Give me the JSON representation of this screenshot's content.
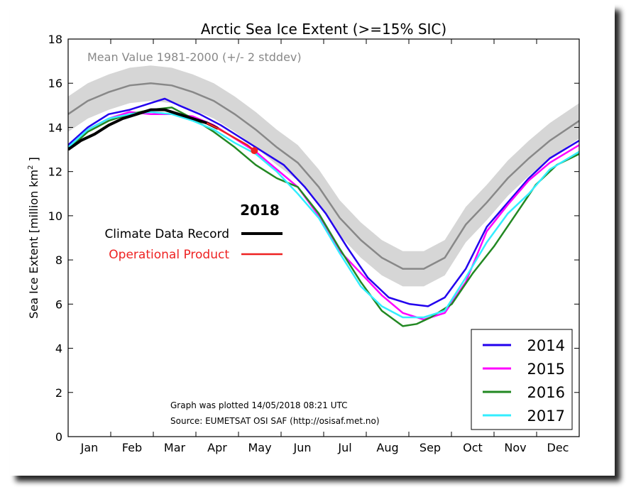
{
  "chart_data": {
    "type": "line",
    "title": "Arctic Sea Ice Extent (>=15% SIC)",
    "ylabel": "Sea Ice Extent [million km",
    "ylabel_sup": "2",
    "ylabel_end": " ]",
    "xlabel": "",
    "ylim": [
      0,
      18
    ],
    "yticks": [
      0,
      2,
      4,
      6,
      8,
      10,
      12,
      14,
      16,
      18
    ],
    "x_range_day": [
      1,
      366
    ],
    "month_ticks": [
      "Jan",
      "Feb",
      "Mar",
      "Apr",
      "May",
      "Jun",
      "Jul",
      "Aug",
      "Sep",
      "Oct",
      "Nov",
      "Dec"
    ],
    "mean_label": "Mean Value 1981-2000 (+/- 2 stddev)",
    "mean": {
      "name": "Mean Value 1981-2000",
      "color": "#888888",
      "band_color": "#d6d6d6",
      "stddev2": 0.8,
      "points": [
        [
          1,
          14.6
        ],
        [
          15,
          15.2
        ],
        [
          30,
          15.6
        ],
        [
          45,
          15.9
        ],
        [
          60,
          16.0
        ],
        [
          75,
          15.9
        ],
        [
          90,
          15.6
        ],
        [
          105,
          15.2
        ],
        [
          120,
          14.6
        ],
        [
          135,
          13.9
        ],
        [
          150,
          13.1
        ],
        [
          165,
          12.4
        ],
        [
          180,
          11.3
        ],
        [
          195,
          9.9
        ],
        [
          210,
          8.9
        ],
        [
          225,
          8.1
        ],
        [
          240,
          7.6
        ],
        [
          255,
          7.6
        ],
        [
          270,
          8.1
        ],
        [
          285,
          9.6
        ],
        [
          300,
          10.6
        ],
        [
          315,
          11.7
        ],
        [
          330,
          12.6
        ],
        [
          345,
          13.4
        ],
        [
          366,
          14.3
        ]
      ]
    },
    "year_heading": "2018",
    "legend_top": [
      {
        "name": "Climate Data Record",
        "color": "#000000"
      },
      {
        "name": "Operational Product",
        "color": "#ee2222"
      }
    ],
    "legend_box": {
      "placement": "lower-right"
    },
    "series": [
      {
        "name": "2014",
        "color": "#2200ee",
        "points": [
          [
            1,
            13.2
          ],
          [
            15,
            14.0
          ],
          [
            30,
            14.6
          ],
          [
            45,
            14.8
          ],
          [
            60,
            15.1
          ],
          [
            70,
            15.3
          ],
          [
            80,
            15.0
          ],
          [
            95,
            14.6
          ],
          [
            110,
            14.1
          ],
          [
            125,
            13.5
          ],
          [
            140,
            12.9
          ],
          [
            155,
            12.3
          ],
          [
            170,
            11.3
          ],
          [
            185,
            10.1
          ],
          [
            200,
            8.6
          ],
          [
            215,
            7.2
          ],
          [
            230,
            6.3
          ],
          [
            245,
            6.0
          ],
          [
            258,
            5.9
          ],
          [
            270,
            6.3
          ],
          [
            285,
            7.6
          ],
          [
            300,
            9.5
          ],
          [
            315,
            10.6
          ],
          [
            330,
            11.7
          ],
          [
            345,
            12.6
          ],
          [
            366,
            13.4
          ]
        ]
      },
      {
        "name": "2015",
        "color": "#ff00ff",
        "points": [
          [
            1,
            13.1
          ],
          [
            15,
            13.9
          ],
          [
            30,
            14.4
          ],
          [
            45,
            14.7
          ],
          [
            60,
            14.6
          ],
          [
            75,
            14.6
          ],
          [
            90,
            14.5
          ],
          [
            105,
            14.1
          ],
          [
            120,
            13.5
          ],
          [
            135,
            12.9
          ],
          [
            150,
            12.1
          ],
          [
            165,
            11.3
          ],
          [
            180,
            10.0
          ],
          [
            195,
            8.4
          ],
          [
            210,
            7.4
          ],
          [
            225,
            6.4
          ],
          [
            240,
            5.6
          ],
          [
            255,
            5.3
          ],
          [
            270,
            5.6
          ],
          [
            285,
            7.0
          ],
          [
            300,
            9.3
          ],
          [
            315,
            10.5
          ],
          [
            330,
            11.6
          ],
          [
            345,
            12.4
          ],
          [
            366,
            13.2
          ]
        ]
      },
      {
        "name": "2016",
        "color": "#228822",
        "points": [
          [
            1,
            13.0
          ],
          [
            15,
            13.8
          ],
          [
            30,
            14.3
          ],
          [
            45,
            14.6
          ],
          [
            60,
            14.8
          ],
          [
            75,
            14.9
          ],
          [
            90,
            14.4
          ],
          [
            105,
            13.8
          ],
          [
            120,
            13.1
          ],
          [
            135,
            12.3
          ],
          [
            150,
            11.7
          ],
          [
            165,
            11.3
          ],
          [
            180,
            10.1
          ],
          [
            195,
            8.5
          ],
          [
            210,
            7.0
          ],
          [
            225,
            5.7
          ],
          [
            240,
            5.0
          ],
          [
            250,
            5.1
          ],
          [
            260,
            5.4
          ],
          [
            275,
            6.0
          ],
          [
            290,
            7.4
          ],
          [
            305,
            8.6
          ],
          [
            320,
            10.0
          ],
          [
            335,
            11.4
          ],
          [
            350,
            12.3
          ],
          [
            366,
            12.8
          ]
        ]
      },
      {
        "name": "2017",
        "color": "#33eeff",
        "points": [
          [
            1,
            13.1
          ],
          [
            15,
            13.9
          ],
          [
            30,
            14.4
          ],
          [
            45,
            14.6
          ],
          [
            60,
            14.7
          ],
          [
            75,
            14.6
          ],
          [
            90,
            14.3
          ],
          [
            105,
            13.9
          ],
          [
            120,
            13.3
          ],
          [
            135,
            12.8
          ],
          [
            150,
            12.0
          ],
          [
            165,
            11.0
          ],
          [
            180,
            9.9
          ],
          [
            195,
            8.3
          ],
          [
            210,
            6.8
          ],
          [
            225,
            5.9
          ],
          [
            240,
            5.4
          ],
          [
            255,
            5.4
          ],
          [
            270,
            5.7
          ],
          [
            285,
            7.2
          ],
          [
            300,
            8.8
          ],
          [
            315,
            10.1
          ],
          [
            330,
            11.0
          ],
          [
            345,
            12.1
          ],
          [
            366,
            12.9
          ]
        ]
      },
      {
        "name": "Climate Data Record",
        "color": "#000000",
        "points": [
          [
            1,
            13.0
          ],
          [
            10,
            13.4
          ],
          [
            20,
            13.7
          ],
          [
            30,
            14.1
          ],
          [
            40,
            14.4
          ],
          [
            50,
            14.6
          ],
          [
            60,
            14.8
          ],
          [
            70,
            14.8
          ],
          [
            80,
            14.6
          ],
          [
            90,
            14.4
          ],
          [
            100,
            14.2
          ],
          [
            108,
            13.95
          ]
        ]
      },
      {
        "name": "Operational Product",
        "color": "#ee2222",
        "points": [
          [
            100,
            14.2
          ],
          [
            108,
            13.95
          ],
          [
            115,
            13.7
          ],
          [
            122,
            13.45
          ],
          [
            129,
            13.2
          ],
          [
            134,
            12.95
          ]
        ]
      }
    ],
    "current_marker": {
      "day": 134,
      "value": 12.95,
      "color": "#ee2222"
    },
    "annotations": [
      "Graph was plotted 14/05/2018 08:21 UTC",
      "Source: EUMETSAT OSI SAF (http://osisaf.met.no)"
    ]
  }
}
